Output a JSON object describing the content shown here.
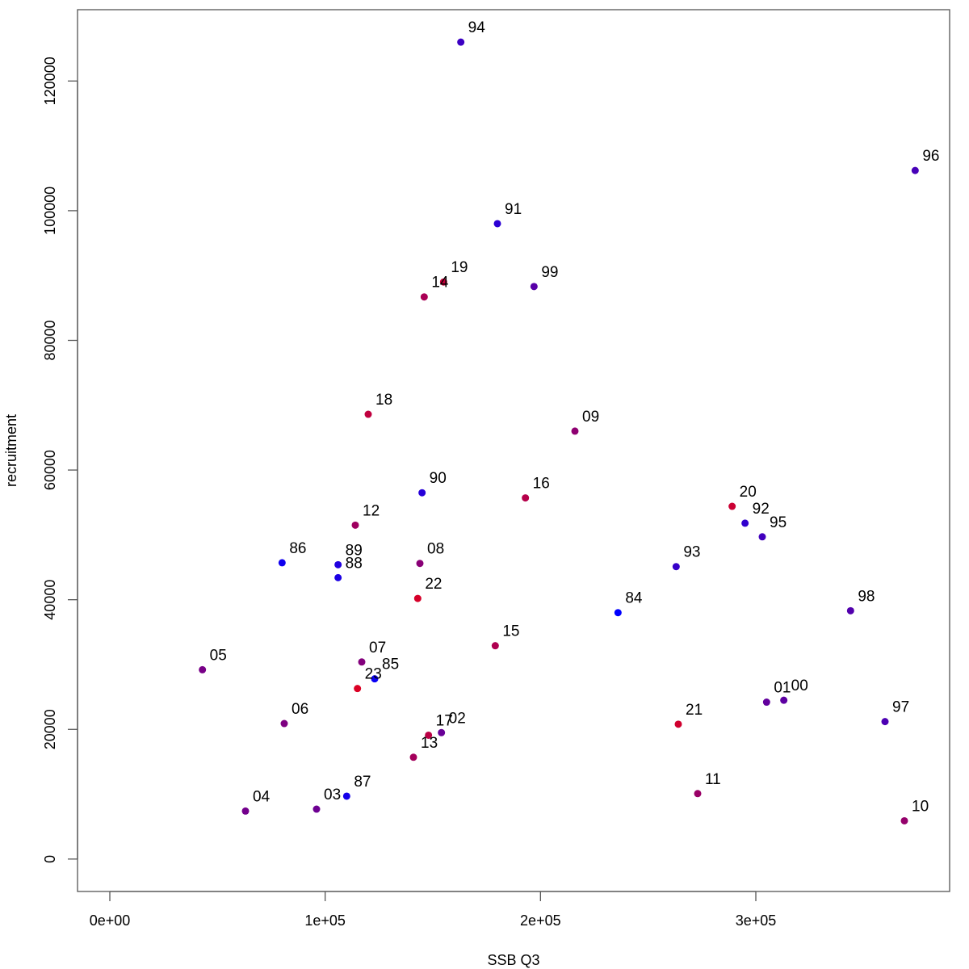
{
  "chart_data": {
    "type": "scatter",
    "title": "",
    "xlabel": "SSB Q3",
    "ylabel": "recruitment",
    "xlim": [
      -15000,
      390000
    ],
    "ylim": [
      -5000,
      131000
    ],
    "x_ticks": [
      0,
      100000,
      200000,
      300000
    ],
    "x_tick_labels": [
      "0e+00",
      "1e+05",
      "2e+05",
      "3e+05"
    ],
    "y_ticks": [
      0,
      20000,
      40000,
      60000,
      80000,
      100000,
      120000
    ],
    "y_tick_labels": [
      "0",
      "20000",
      "40000",
      "60000",
      "80000",
      "100000",
      "120000"
    ],
    "grid": false,
    "legend": "none",
    "color_gradient": {
      "earliest": "#0000ff",
      "latest": "#ff0000"
    },
    "points": [
      {
        "label": "84",
        "x": 236000,
        "y": 38000,
        "color": "#0000ff"
      },
      {
        "label": "85",
        "x": 123000,
        "y": 27800,
        "color": "#0a00f5"
      },
      {
        "label": "86",
        "x": 80000,
        "y": 45700,
        "color": "#1000ef"
      },
      {
        "label": "87",
        "x": 110000,
        "y": 9700,
        "color": "#1500ea"
      },
      {
        "label": "88",
        "x": 106000,
        "y": 43400,
        "color": "#1b00e4"
      },
      {
        "label": "89",
        "x": 106000,
        "y": 45400,
        "color": "#2000df"
      },
      {
        "label": "90",
        "x": 145000,
        "y": 56500,
        "color": "#2600d9"
      },
      {
        "label": "91",
        "x": 180000,
        "y": 98000,
        "color": "#2b00d4"
      },
      {
        "label": "92",
        "x": 295000,
        "y": 51800,
        "color": "#3100ce"
      },
      {
        "label": "93",
        "x": 263000,
        "y": 45100,
        "color": "#3600c9"
      },
      {
        "label": "94",
        "x": 163000,
        "y": 126000,
        "color": "#3c00c3"
      },
      {
        "label": "95",
        "x": 303000,
        "y": 49700,
        "color": "#4100be"
      },
      {
        "label": "96",
        "x": 374000,
        "y": 106200,
        "color": "#4700b8"
      },
      {
        "label": "97",
        "x": 360000,
        "y": 21200,
        "color": "#4c00b3"
      },
      {
        "label": "98",
        "x": 344000,
        "y": 38300,
        "color": "#5200ad"
      },
      {
        "label": "99",
        "x": 197000,
        "y": 88300,
        "color": "#5700a8"
      },
      {
        "label": "00",
        "x": 313000,
        "y": 24500,
        "color": "#5d00a2"
      },
      {
        "label": "01",
        "x": 305000,
        "y": 24200,
        "color": "#62009d"
      },
      {
        "label": "02",
        "x": 154000,
        "y": 19500,
        "color": "#680097"
      },
      {
        "label": "03",
        "x": 96000,
        "y": 7700,
        "color": "#6d0092"
      },
      {
        "label": "04",
        "x": 63000,
        "y": 7400,
        "color": "#73008c"
      },
      {
        "label": "05",
        "x": 43000,
        "y": 29200,
        "color": "#780087"
      },
      {
        "label": "06",
        "x": 81000,
        "y": 20900,
        "color": "#7e0081"
      },
      {
        "label": "07",
        "x": 117000,
        "y": 30400,
        "color": "#83007c"
      },
      {
        "label": "08",
        "x": 144000,
        "y": 45600,
        "color": "#890076"
      },
      {
        "label": "09",
        "x": 216000,
        "y": 66000,
        "color": "#8e0071"
      },
      {
        "label": "10",
        "x": 369000,
        "y": 5900,
        "color": "#94006b"
      },
      {
        "label": "11",
        "x": 273000,
        "y": 10100,
        "color": "#990066"
      },
      {
        "label": "12",
        "x": 114000,
        "y": 51500,
        "color": "#9f0060"
      },
      {
        "label": "13",
        "x": 141000,
        "y": 15700,
        "color": "#a4005b"
      },
      {
        "label": "14",
        "x": 146000,
        "y": 86700,
        "color": "#aa0055"
      },
      {
        "label": "15",
        "x": 179000,
        "y": 32900,
        "color": "#af0050"
      },
      {
        "label": "16",
        "x": 193000,
        "y": 55700,
        "color": "#b5004a"
      },
      {
        "label": "17",
        "x": 148000,
        "y": 19100,
        "color": "#ba0045"
      },
      {
        "label": "18",
        "x": 120000,
        "y": 68600,
        "color": "#c0003f"
      },
      {
        "label": "19",
        "x": 155000,
        "y": 89000,
        "color": "#c5003a"
      },
      {
        "label": "20",
        "x": 289000,
        "y": 54400,
        "color": "#cb0034"
      },
      {
        "label": "21",
        "x": 264000,
        "y": 20800,
        "color": "#d0002f"
      },
      {
        "label": "22",
        "x": 143000,
        "y": 40200,
        "color": "#d60029"
      },
      {
        "label": "23",
        "x": 115000,
        "y": 26300,
        "color": "#db0024"
      }
    ]
  }
}
